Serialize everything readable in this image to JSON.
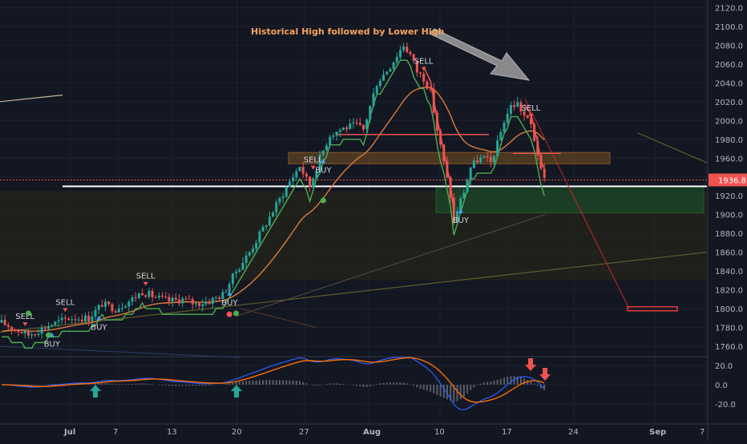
{
  "chart_data": {
    "type": "candlestick",
    "title": "",
    "annotation": "Historical High followed by Lower High",
    "price_axis": {
      "ylim": [
        1745,
        2125
      ],
      "ticks": [
        2120.0,
        2100.0,
        2080.0,
        2060.0,
        2040.0,
        2020.0,
        2000.0,
        1980.0,
        1960.0,
        1940.0,
        1920.0,
        1900.0,
        1880.0,
        1860.0,
        1840.0,
        1820.0,
        1800.0,
        1780.0,
        1760.0
      ],
      "last_price_label": "1936.8"
    },
    "x_axis": {
      "labels": [
        "Jul",
        "7",
        "13",
        "20",
        "27",
        "Aug",
        "10",
        "17",
        "24",
        "Sep",
        "7"
      ]
    },
    "indicator_axis": {
      "ticks": [
        "20.0",
        "0.0",
        "-20.0"
      ]
    },
    "price_path": [
      [
        0,
        1785
      ],
      [
        8,
        1772
      ],
      [
        14,
        1782
      ],
      [
        20,
        1790
      ],
      [
        26,
        1790
      ],
      [
        30,
        1805
      ],
      [
        34,
        1800
      ],
      [
        38,
        1808
      ],
      [
        42,
        1818
      ],
      [
        46,
        1812
      ],
      [
        50,
        1808
      ],
      [
        54,
        1810
      ],
      [
        58,
        1805
      ],
      [
        62,
        1808
      ],
      [
        66,
        1815
      ],
      [
        70,
        1840
      ],
      [
        74,
        1860
      ],
      [
        78,
        1885
      ],
      [
        82,
        1910
      ],
      [
        86,
        1935
      ],
      [
        89,
        1952
      ],
      [
        92,
        1930
      ],
      [
        95,
        1960
      ],
      [
        98,
        1985
      ],
      [
        102,
        1992
      ],
      [
        106,
        1995
      ],
      [
        108,
        1990
      ],
      [
        112,
        2040
      ],
      [
        116,
        2058
      ],
      [
        119,
        2075
      ],
      [
        120,
        2080
      ],
      [
        122,
        2070
      ],
      [
        124,
        2052
      ],
      [
        126,
        2045
      ],
      [
        128,
        2030
      ],
      [
        130,
        1990
      ],
      [
        132,
        1955
      ],
      [
        134,
        1920
      ],
      [
        135,
        1890
      ],
      [
        136,
        1905
      ],
      [
        138,
        1925
      ],
      [
        140,
        1950
      ],
      [
        142,
        1958
      ],
      [
        144,
        1960
      ],
      [
        146,
        1955
      ],
      [
        148,
        1975
      ],
      [
        150,
        2000
      ],
      [
        152,
        2015
      ],
      [
        154,
        2018
      ],
      [
        156,
        2005
      ],
      [
        158,
        1995
      ],
      [
        160,
        1965
      ],
      [
        161,
        1945
      ],
      [
        162,
        1936.8
      ]
    ],
    "signals": [
      {
        "label": "SELL",
        "day": 7
      },
      {
        "label": "BUY",
        "day": 15
      },
      {
        "label": "SELL",
        "day": 19
      },
      {
        "label": "BUY",
        "day": 29
      },
      {
        "label": "SELL",
        "day": 43
      },
      {
        "label": "BUY",
        "day": 68
      },
      {
        "label": "SELL",
        "day": 93
      },
      {
        "label": "BUY",
        "day": 96
      },
      {
        "label": "SELL",
        "day": 126
      },
      {
        "label": "BUY",
        "day": 137
      },
      {
        "label": "SELL",
        "day": 158
      }
    ],
    "colors": {
      "background": "#131722",
      "up": "#26a69a",
      "down": "#ef5350",
      "supertrend_up": "#4caf50",
      "supertrend_down": "#ef5350",
      "ema": "#e07b39",
      "macd": "#2962ff",
      "signal": "#ff6d00",
      "annotation": "#f7a35c"
    }
  }
}
